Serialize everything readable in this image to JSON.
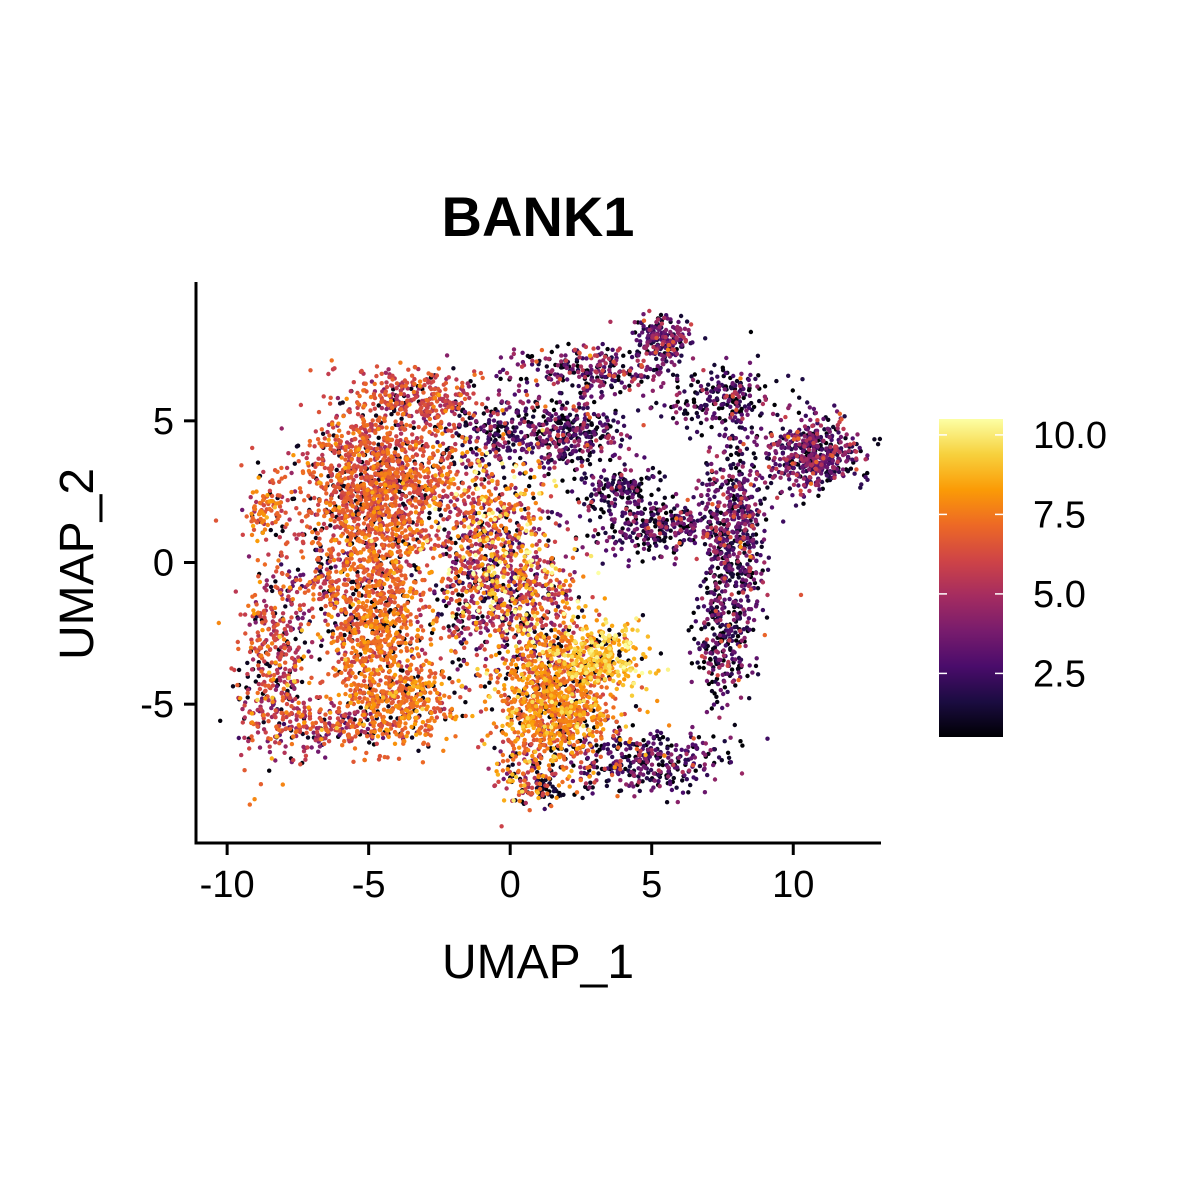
{
  "chart_data": {
    "type": "scatter",
    "title": "BANK1",
    "xlabel": "UMAP_1",
    "ylabel": "UMAP_2",
    "xlim": [
      -11.1,
      13.1
    ],
    "ylim": [
      -9.9,
      9.9
    ],
    "x_ticks": [
      -10,
      -5,
      0,
      5,
      10
    ],
    "x_tick_labels": [
      "-10",
      "-5",
      "0",
      "5",
      "10"
    ],
    "y_ticks": [
      -5,
      0,
      5
    ],
    "y_tick_labels": [
      "-5",
      "0",
      "5"
    ],
    "grid": false,
    "color_scale": {
      "name": "inferno",
      "min": 0.5,
      "max": 10.5,
      "ticks": [
        2.5,
        5.0,
        7.5,
        10.0
      ],
      "tick_labels": [
        "2.5",
        "5.0",
        "7.5",
        "10.0"
      ],
      "stops": [
        "#000004",
        "#1b0c41",
        "#4a0c6b",
        "#781c6d",
        "#a52c60",
        "#cf4446",
        "#ed6925",
        "#fb9b06",
        "#f7d13d",
        "#fcffa4"
      ]
    },
    "legend_position": "right",
    "clusters": [
      {
        "name": "left-large-blob",
        "cx": -4.6,
        "cy": 2.8,
        "sx": 1.4,
        "sy": 1.5,
        "n": 1400,
        "mean": 6.4,
        "sd": 0.9
      },
      {
        "name": "top-left-arc",
        "cx": -3.2,
        "cy": 5.8,
        "sx": 1.2,
        "sy": 0.5,
        "n": 260,
        "mean": 6.0,
        "sd": 1.0
      },
      {
        "name": "left-edge-small",
        "cx": -8.6,
        "cy": 1.8,
        "sx": 0.4,
        "sy": 0.5,
        "n": 100,
        "mean": 6.8,
        "sd": 0.9
      },
      {
        "name": "left-arc-lower",
        "cx": -8.3,
        "cy": -3.6,
        "sx": 0.7,
        "sy": 1.7,
        "n": 420,
        "mean": 6.0,
        "sd": 1.3
      },
      {
        "name": "left-arc-bottom",
        "cx": -6.6,
        "cy": -5.8,
        "sx": 1.2,
        "sy": 0.4,
        "n": 180,
        "mean": 5.6,
        "sd": 1.4
      },
      {
        "name": "middle-band",
        "cx": -4.8,
        "cy": -1.8,
        "sx": 0.9,
        "sy": 2.0,
        "n": 900,
        "mean": 7.0,
        "sd": 0.8
      },
      {
        "name": "middle-band-lower",
        "cx": -3.8,
        "cy": -5.0,
        "sx": 1.0,
        "sy": 0.8,
        "n": 420,
        "mean": 7.2,
        "sd": 0.8
      },
      {
        "name": "left-outliers",
        "cx": -6.6,
        "cy": -1.0,
        "sx": 1.0,
        "sy": 0.8,
        "n": 140,
        "mean": 5.2,
        "sd": 1.6
      },
      {
        "name": "center-stream",
        "cx": -0.6,
        "cy": 1.0,
        "sx": 1.0,
        "sy": 1.4,
        "n": 500,
        "mean": 6.8,
        "sd": 2.0
      },
      {
        "name": "center-diagonal",
        "cx": 0.6,
        "cy": -1.6,
        "sx": 0.9,
        "sy": 1.2,
        "n": 440,
        "mean": 6.2,
        "sd": 2.3
      },
      {
        "name": "center-scattered",
        "cx": -1.4,
        "cy": -1.4,
        "sx": 0.9,
        "sy": 1.3,
        "n": 260,
        "mean": 4.2,
        "sd": 2.4
      },
      {
        "name": "bottom-center",
        "cx": 1.6,
        "cy": -5.0,
        "sx": 1.1,
        "sy": 1.2,
        "n": 1000,
        "mean": 7.6,
        "sd": 0.9
      },
      {
        "name": "bright-spot",
        "cx": 3.3,
        "cy": -3.3,
        "sx": 0.8,
        "sy": 0.6,
        "n": 280,
        "mean": 9.0,
        "sd": 0.8
      },
      {
        "name": "bottom-tail",
        "cx": 0.4,
        "cy": -7.4,
        "sx": 0.5,
        "sy": 0.6,
        "n": 120,
        "mean": 6.5,
        "sd": 1.6
      },
      {
        "name": "bottom-dark",
        "cx": 1.3,
        "cy": -8.0,
        "sx": 0.3,
        "sy": 0.25,
        "n": 40,
        "mean": 1.2,
        "sd": 0.6
      },
      {
        "name": "bottom-right-arc",
        "cx": 4.7,
        "cy": -7.0,
        "sx": 1.4,
        "sy": 0.6,
        "n": 360,
        "mean": 2.4,
        "sd": 1.8
      },
      {
        "name": "top-center-blob",
        "cx": 1.8,
        "cy": 4.6,
        "sx": 1.1,
        "sy": 0.6,
        "n": 420,
        "mean": 2.8,
        "sd": 1.8
      },
      {
        "name": "top-center-arc",
        "cx": 2.8,
        "cy": 6.8,
        "sx": 1.4,
        "sy": 0.45,
        "n": 260,
        "mean": 3.2,
        "sd": 2.0
      },
      {
        "name": "top-right-peak",
        "cx": 5.4,
        "cy": 7.9,
        "sx": 0.5,
        "sy": 0.4,
        "n": 200,
        "mean": 3.2,
        "sd": 1.6
      },
      {
        "name": "top-right-arc",
        "cx": 7.5,
        "cy": 5.8,
        "sx": 1.0,
        "sy": 0.6,
        "n": 200,
        "mean": 2.4,
        "sd": 1.8
      },
      {
        "name": "right-blob",
        "cx": 10.7,
        "cy": 3.8,
        "sx": 0.8,
        "sy": 0.6,
        "n": 500,
        "mean": 3.3,
        "sd": 1.5
      },
      {
        "name": "right-column",
        "cx": 7.9,
        "cy": 1.2,
        "sx": 0.6,
        "sy": 1.8,
        "n": 560,
        "mean": 3.0,
        "sd": 1.6
      },
      {
        "name": "right-column-lower",
        "cx": 7.5,
        "cy": -2.8,
        "sx": 0.5,
        "sy": 1.2,
        "n": 240,
        "mean": 2.4,
        "sd": 1.7
      },
      {
        "name": "middle-right-band",
        "cx": 5.2,
        "cy": 1.2,
        "sx": 1.3,
        "sy": 0.5,
        "n": 320,
        "mean": 2.6,
        "sd": 1.8
      },
      {
        "name": "connector-left",
        "cx": 3.7,
        "cy": 2.6,
        "sx": 0.8,
        "sy": 0.4,
        "n": 140,
        "mean": 2.2,
        "sd": 1.6
      },
      {
        "name": "connector-topleft",
        "cx": -1.0,
        "cy": 4.6,
        "sx": 0.8,
        "sy": 0.6,
        "n": 120,
        "mean": 2.0,
        "sd": 1.8
      }
    ]
  }
}
